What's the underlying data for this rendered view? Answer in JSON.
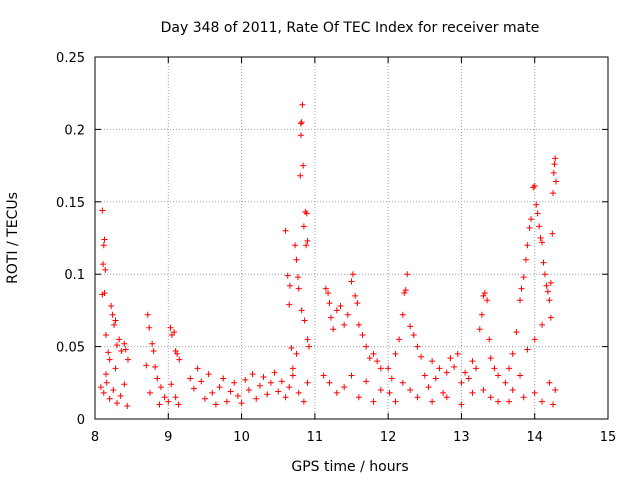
{
  "chart_data": {
    "type": "scatter",
    "title": "Day 348 of 2011, Rate Of TEC Index for receiver mate",
    "xlabel": "GPS time / hours",
    "ylabel": "ROTI / TECUs",
    "xlim": [
      8,
      15
    ],
    "ylim": [
      0,
      0.25
    ],
    "x_ticks": [
      8,
      9,
      10,
      11,
      12,
      13,
      14,
      15
    ],
    "x_tick_labels": [
      "8",
      "9",
      "10",
      "11",
      "12",
      "13",
      "14",
      "15"
    ],
    "y_ticks": [
      0,
      0.05,
      0.1,
      0.15,
      0.2,
      0.25
    ],
    "y_tick_labels": [
      "0",
      "0.05",
      "0.1",
      "0.15",
      "0.2",
      "0.25"
    ],
    "grid": true,
    "marker": "+",
    "color": "#ff0000",
    "series": [
      {
        "name": "ROTI",
        "points": [
          [
            8.1,
            0.144
          ],
          [
            8.12,
            0.12
          ],
          [
            8.13,
            0.124
          ],
          [
            8.14,
            0.103
          ],
          [
            8.11,
            0.107
          ],
          [
            8.1,
            0.086
          ],
          [
            8.13,
            0.087
          ],
          [
            8.15,
            0.058
          ],
          [
            8.18,
            0.046
          ],
          [
            8.2,
            0.041
          ],
          [
            8.22,
            0.078
          ],
          [
            8.24,
            0.072
          ],
          [
            8.26,
            0.065
          ],
          [
            8.28,
            0.068
          ],
          [
            8.3,
            0.051
          ],
          [
            8.33,
            0.055
          ],
          [
            8.36,
            0.047
          ],
          [
            8.4,
            0.052
          ],
          [
            8.42,
            0.048
          ],
          [
            8.45,
            0.041
          ],
          [
            8.08,
            0.022
          ],
          [
            8.12,
            0.018
          ],
          [
            8.16,
            0.025
          ],
          [
            8.2,
            0.014
          ],
          [
            8.25,
            0.02
          ],
          [
            8.3,
            0.011
          ],
          [
            8.35,
            0.016
          ],
          [
            8.4,
            0.024
          ],
          [
            8.44,
            0.009
          ],
          [
            8.15,
            0.031
          ],
          [
            8.28,
            0.035
          ],
          [
            8.72,
            0.072
          ],
          [
            8.74,
            0.063
          ],
          [
            8.78,
            0.052
          ],
          [
            8.8,
            0.047
          ],
          [
            8.7,
            0.037
          ],
          [
            8.82,
            0.036
          ],
          [
            8.85,
            0.028
          ],
          [
            8.9,
            0.022
          ],
          [
            8.95,
            0.015
          ],
          [
            9.0,
            0.012
          ],
          [
            8.75,
            0.018
          ],
          [
            8.88,
            0.01
          ],
          [
            9.03,
            0.063
          ],
          [
            9.05,
            0.058
          ],
          [
            9.08,
            0.06
          ],
          [
            9.1,
            0.047
          ],
          [
            9.12,
            0.045
          ],
          [
            9.15,
            0.041
          ],
          [
            9.04,
            0.024
          ],
          [
            9.1,
            0.015
          ],
          [
            9.14,
            0.01
          ],
          [
            9.3,
            0.028
          ],
          [
            9.35,
            0.021
          ],
          [
            9.4,
            0.035
          ],
          [
            9.45,
            0.026
          ],
          [
            9.5,
            0.014
          ],
          [
            9.55,
            0.031
          ],
          [
            9.6,
            0.018
          ],
          [
            9.65,
            0.01
          ],
          [
            9.7,
            0.022
          ],
          [
            9.75,
            0.028
          ],
          [
            9.8,
            0.012
          ],
          [
            9.85,
            0.019
          ],
          [
            9.9,
            0.025
          ],
          [
            9.95,
            0.016
          ],
          [
            10.0,
            0.011
          ],
          [
            10.05,
            0.027
          ],
          [
            10.1,
            0.02
          ],
          [
            10.15,
            0.031
          ],
          [
            10.2,
            0.014
          ],
          [
            10.25,
            0.023
          ],
          [
            10.3,
            0.029
          ],
          [
            10.35,
            0.017
          ],
          [
            10.4,
            0.025
          ],
          [
            10.45,
            0.032
          ],
          [
            10.5,
            0.019
          ],
          [
            10.55,
            0.026
          ],
          [
            10.6,
            0.015
          ],
          [
            10.6,
            0.13
          ],
          [
            10.63,
            0.099
          ],
          [
            10.65,
            0.079
          ],
          [
            10.66,
            0.092
          ],
          [
            10.68,
            0.049
          ],
          [
            10.7,
            0.035
          ],
          [
            10.73,
            0.12
          ],
          [
            10.75,
            0.11
          ],
          [
            10.77,
            0.098
          ],
          [
            10.8,
            0.168
          ],
          [
            10.81,
            0.204
          ],
          [
            10.82,
            0.205
          ],
          [
            10.83,
            0.217
          ],
          [
            10.81,
            0.196
          ],
          [
            10.84,
            0.175
          ],
          [
            10.85,
            0.133
          ],
          [
            10.87,
            0.143
          ],
          [
            10.89,
            0.142
          ],
          [
            10.9,
            0.123
          ],
          [
            10.88,
            0.12
          ],
          [
            10.78,
            0.09
          ],
          [
            10.82,
            0.075
          ],
          [
            10.86,
            0.068
          ],
          [
            10.9,
            0.055
          ],
          [
            10.92,
            0.05
          ],
          [
            10.75,
            0.045
          ],
          [
            10.7,
            0.03
          ],
          [
            10.65,
            0.022
          ],
          [
            10.78,
            0.018
          ],
          [
            10.85,
            0.012
          ],
          [
            10.9,
            0.025
          ],
          [
            11.15,
            0.09
          ],
          [
            11.18,
            0.087
          ],
          [
            11.2,
            0.08
          ],
          [
            11.22,
            0.07
          ],
          [
            11.25,
            0.062
          ],
          [
            11.3,
            0.075
          ],
          [
            11.35,
            0.078
          ],
          [
            11.4,
            0.065
          ],
          [
            11.45,
            0.072
          ],
          [
            11.5,
            0.095
          ],
          [
            11.52,
            0.1
          ],
          [
            11.55,
            0.085
          ],
          [
            11.58,
            0.08
          ],
          [
            11.6,
            0.065
          ],
          [
            11.65,
            0.058
          ],
          [
            11.7,
            0.05
          ],
          [
            11.75,
            0.042
          ],
          [
            11.8,
            0.045
          ],
          [
            11.85,
            0.04
          ],
          [
            11.9,
            0.035
          ],
          [
            11.12,
            0.03
          ],
          [
            11.2,
            0.025
          ],
          [
            11.3,
            0.018
          ],
          [
            11.4,
            0.022
          ],
          [
            11.5,
            0.03
          ],
          [
            11.6,
            0.015
          ],
          [
            11.7,
            0.026
          ],
          [
            11.8,
            0.012
          ],
          [
            11.9,
            0.02
          ],
          [
            12.0,
            0.035
          ],
          [
            12.05,
            0.028
          ],
          [
            12.1,
            0.045
          ],
          [
            12.15,
            0.055
          ],
          [
            12.2,
            0.072
          ],
          [
            12.22,
            0.087
          ],
          [
            12.24,
            0.089
          ],
          [
            12.26,
            0.1
          ],
          [
            12.3,
            0.064
          ],
          [
            12.35,
            0.058
          ],
          [
            12.4,
            0.05
          ],
          [
            12.45,
            0.043
          ],
          [
            12.02,
            0.018
          ],
          [
            12.1,
            0.012
          ],
          [
            12.2,
            0.025
          ],
          [
            12.3,
            0.02
          ],
          [
            12.4,
            0.015
          ],
          [
            12.5,
            0.03
          ],
          [
            12.55,
            0.022
          ],
          [
            12.6,
            0.04
          ],
          [
            12.65,
            0.028
          ],
          [
            12.7,
            0.035
          ],
          [
            12.75,
            0.018
          ],
          [
            12.8,
            0.032
          ],
          [
            12.85,
            0.042
          ],
          [
            12.9,
            0.036
          ],
          [
            12.95,
            0.045
          ],
          [
            13.0,
            0.025
          ],
          [
            13.05,
            0.032
          ],
          [
            13.1,
            0.028
          ],
          [
            13.15,
            0.04
          ],
          [
            13.2,
            0.035
          ],
          [
            12.6,
            0.012
          ],
          [
            12.8,
            0.015
          ],
          [
            13.0,
            0.01
          ],
          [
            13.15,
            0.018
          ],
          [
            13.25,
            0.062
          ],
          [
            13.28,
            0.072
          ],
          [
            13.3,
            0.085
          ],
          [
            13.32,
            0.087
          ],
          [
            13.35,
            0.082
          ],
          [
            13.38,
            0.055
          ],
          [
            13.4,
            0.042
          ],
          [
            13.45,
            0.035
          ],
          [
            13.5,
            0.03
          ],
          [
            13.3,
            0.02
          ],
          [
            13.4,
            0.015
          ],
          [
            13.5,
            0.012
          ],
          [
            13.6,
            0.025
          ],
          [
            13.65,
            0.035
          ],
          [
            13.7,
            0.045
          ],
          [
            13.75,
            0.06
          ],
          [
            13.8,
            0.082
          ],
          [
            13.82,
            0.09
          ],
          [
            13.85,
            0.098
          ],
          [
            13.88,
            0.11
          ],
          [
            13.9,
            0.12
          ],
          [
            13.93,
            0.132
          ],
          [
            13.95,
            0.138
          ],
          [
            13.98,
            0.16
          ],
          [
            14.0,
            0.161
          ],
          [
            14.02,
            0.148
          ],
          [
            14.04,
            0.142
          ],
          [
            14.06,
            0.133
          ],
          [
            14.08,
            0.125
          ],
          [
            14.1,
            0.122
          ],
          [
            14.12,
            0.108
          ],
          [
            14.14,
            0.1
          ],
          [
            14.16,
            0.092
          ],
          [
            14.18,
            0.088
          ],
          [
            14.2,
            0.082
          ],
          [
            14.22,
            0.094
          ],
          [
            14.24,
            0.128
          ],
          [
            14.25,
            0.156
          ],
          [
            14.26,
            0.17
          ],
          [
            14.27,
            0.176
          ],
          [
            14.28,
            0.18
          ],
          [
            14.29,
            0.164
          ],
          [
            14.22,
            0.07
          ],
          [
            14.1,
            0.065
          ],
          [
            14.0,
            0.055
          ],
          [
            13.9,
            0.048
          ],
          [
            13.8,
            0.03
          ],
          [
            13.7,
            0.02
          ],
          [
            13.65,
            0.012
          ],
          [
            13.85,
            0.015
          ],
          [
            14.0,
            0.018
          ],
          [
            14.1,
            0.012
          ],
          [
            14.2,
            0.025
          ],
          [
            14.25,
            0.01
          ],
          [
            14.28,
            0.02
          ]
        ]
      }
    ]
  }
}
